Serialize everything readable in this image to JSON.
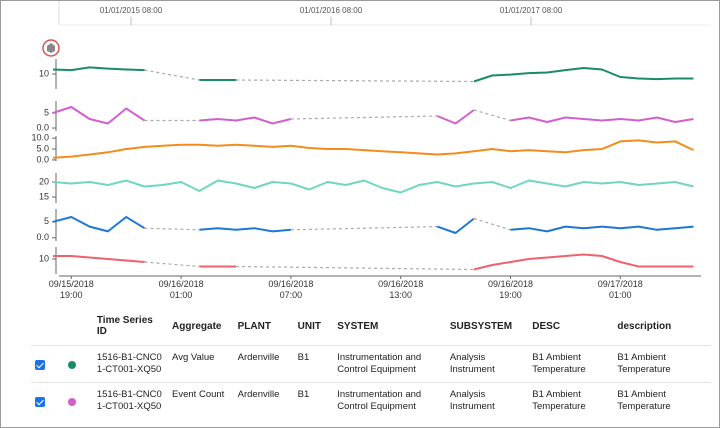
{
  "timeline": {
    "labels": [
      "01/01/2015 08:00",
      "01/01/2016 08:00",
      "01/01/2017 08:00"
    ]
  },
  "chart_data": {
    "type": "line",
    "categories": [
      null,
      "09/15/2018\n19:00",
      null,
      null,
      null,
      null,
      null,
      "09/16/2018\n01:00",
      null,
      null,
      null,
      null,
      null,
      "09/16/2018\n07:00",
      null,
      null,
      null,
      null,
      null,
      "09/16/2018\n13:00",
      null,
      null,
      null,
      null,
      null,
      "09/16/2018\n19:00",
      null,
      null,
      null,
      null,
      null,
      "09/17/2018\n01:00",
      null,
      null,
      null,
      null
    ],
    "series": [
      {
        "color": "#1b8a6b",
        "ylim": [
          5,
          15
        ],
        "yticks": [
          10
        ],
        "values": [
          11.5,
          11.3,
          12.2,
          11.8,
          11.5,
          11.3,
          null,
          null,
          8,
          8,
          8,
          null,
          null,
          null,
          null,
          null,
          null,
          null,
          null,
          null,
          null,
          null,
          null,
          7.5,
          9.5,
          9.8,
          10.3,
          10.5,
          11.3,
          12,
          11.5,
          9,
          8.5,
          8.3,
          8.5,
          8.5
        ]
      },
      {
        "color": "#d35fcf",
        "ylim": [
          -1,
          9
        ],
        "yticks": [
          5,
          {
            "value": 0,
            "label": "0.0"
          }
        ],
        "values": [
          5,
          7,
          3,
          1.5,
          6.5,
          2.5,
          null,
          null,
          2.5,
          3,
          2.5,
          3.5,
          1.5,
          3,
          null,
          null,
          null,
          null,
          null,
          null,
          null,
          4,
          1.5,
          6,
          null,
          2.5,
          3.5,
          2,
          3.5,
          3,
          2.5,
          3,
          2.5,
          3.5,
          2,
          3
        ]
      },
      {
        "color": "#f28c1c",
        "ylim": [
          -0.5,
          11
        ],
        "yticks": [
          {
            "value": 10,
            "label": "10.0"
          },
          {
            "value": 5,
            "label": "5.0"
          },
          {
            "value": 0,
            "label": "0.0"
          }
        ],
        "values": [
          1,
          1.5,
          2.5,
          3.5,
          5,
          6,
          6.5,
          7,
          7,
          6.5,
          7,
          6.5,
          6,
          6.5,
          5.5,
          5,
          5,
          4.5,
          4,
          3.5,
          3,
          2.5,
          3,
          4,
          5,
          4,
          4.5,
          4,
          3.5,
          4.5,
          5,
          8.5,
          9,
          8,
          8.5,
          4.5
        ]
      },
      {
        "color": "#6fd6c3",
        "ylim": [
          13,
          23
        ],
        "yticks": [
          20,
          15
        ],
        "values": [
          20,
          19.5,
          20,
          19,
          20.5,
          18.5,
          19,
          20,
          17,
          20.5,
          19.5,
          18,
          20,
          19.5,
          17.5,
          20,
          19,
          20.5,
          18,
          16.5,
          19,
          20,
          18.5,
          19.5,
          20,
          18,
          20.5,
          19.5,
          18.5,
          20,
          19.5,
          20,
          19,
          19.5,
          20,
          18.5
        ]
      },
      {
        "color": "#1f77d4",
        "ylim": [
          -1,
          9
        ],
        "yticks": [
          5,
          {
            "value": 0,
            "label": "0.0"
          }
        ],
        "values": [
          5,
          6.5,
          3.5,
          2,
          6.5,
          3,
          null,
          null,
          2.5,
          3,
          2.5,
          3,
          2,
          2.5,
          null,
          null,
          null,
          null,
          null,
          null,
          null,
          3.5,
          1.5,
          6,
          null,
          2.5,
          3,
          2,
          3.5,
          3,
          3.5,
          3,
          3.5,
          2.5,
          3,
          3.5
        ]
      },
      {
        "color": "#f0616d",
        "ylim": [
          5,
          14
        ],
        "yticks": [
          10
        ],
        "values": [
          11,
          11,
          10.5,
          10,
          9.5,
          9,
          null,
          null,
          7.5,
          7.5,
          7.5,
          null,
          null,
          null,
          null,
          null,
          null,
          null,
          null,
          null,
          null,
          null,
          null,
          6.5,
          8,
          9,
          10,
          10.5,
          11,
          11.5,
          11,
          9,
          7.5,
          7.5,
          7.5,
          7.5
        ]
      }
    ]
  },
  "table": {
    "columns": [
      "Time Series ID",
      "Aggregate",
      "PLANT",
      "UNIT",
      "SYSTEM",
      "SUBSYSTEM",
      "DESC",
      "description"
    ],
    "rows": [
      [
        "1516-B1-CNC01-CT001-XQ50",
        "Avg Value",
        "Ardenville",
        "B1",
        "Instrumentation and Control Equipment",
        "Analysis Instrument",
        "B1 Ambient Temperature",
        "B1 Ambient Temperature"
      ],
      [
        "1516-B1-CNC01-CT001-XQ50",
        "Event Count",
        "Ardenville",
        "B1",
        "Instrumentation and Control Equipment",
        "Analysis Instrument",
        "B1 Ambient Temperature",
        "B1 Ambient Temperature"
      ]
    ]
  }
}
